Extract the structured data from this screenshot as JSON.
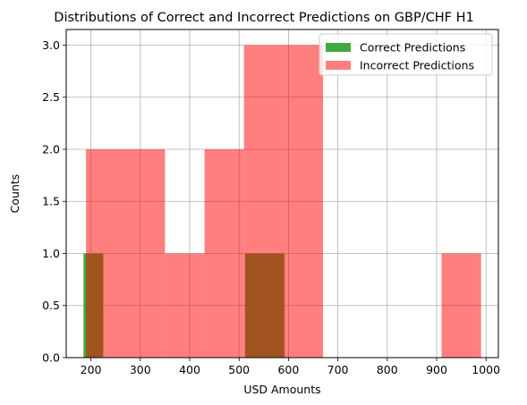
{
  "chart_data": {
    "type": "bar",
    "title": "Distributions of Correct and Incorrect Predictions on GBP/CHF H1",
    "xlabel": "USD Amounts",
    "ylabel": "Counts",
    "xlim": [
      150,
      1025
    ],
    "ylim": [
      0,
      3.15
    ],
    "xticks": [
      200,
      300,
      400,
      500,
      600,
      700,
      800,
      900,
      1000
    ],
    "yticks": [
      0.0,
      0.5,
      1.0,
      1.5,
      2.0,
      2.5,
      3.0
    ],
    "xtick_labels": [
      "200",
      "300",
      "400",
      "500",
      "600",
      "700",
      "800",
      "900",
      "1000"
    ],
    "ytick_labels": [
      "0.0",
      "0.5",
      "1.0",
      "1.5",
      "2.0",
      "2.5",
      "3.0"
    ],
    "grid": true,
    "legend_position": "top-right",
    "series": [
      {
        "name": "Correct Predictions",
        "color": "#2ca02c",
        "opacity": 0.9,
        "bins": [
          {
            "x0": 185,
            "x1": 225,
            "count": 1
          },
          {
            "x0": 512,
            "x1": 592,
            "count": 1
          }
        ]
      },
      {
        "name": "Incorrect Predictions",
        "color": "#ff0000",
        "opacity": 0.5,
        "bins": [
          {
            "x0": 190,
            "x1": 350,
            "count": 2
          },
          {
            "x0": 350,
            "x1": 430,
            "count": 1
          },
          {
            "x0": 430,
            "x1": 510,
            "count": 2
          },
          {
            "x0": 510,
            "x1": 670,
            "count": 3
          },
          {
            "x0": 910,
            "x1": 990,
            "count": 1
          }
        ]
      }
    ]
  }
}
